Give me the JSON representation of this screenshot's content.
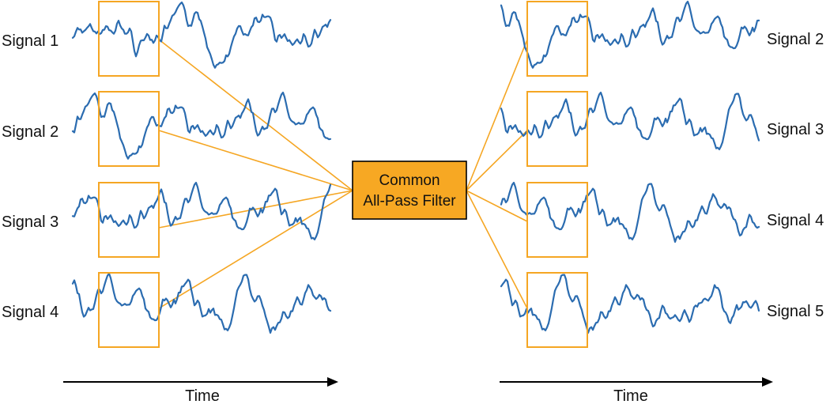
{
  "colors": {
    "signal": "#2b6cb0",
    "accent": "#f5a623",
    "filter_fill": "#f7a823",
    "axis": "#000000"
  },
  "left_panel": {
    "signals": [
      "Signal 1",
      "Signal 2",
      "Signal 3",
      "Signal 4"
    ],
    "time_label": "Time"
  },
  "right_panel": {
    "signals": [
      "Signal 2",
      "Signal 3",
      "Signal 4",
      "Signal 5"
    ],
    "time_label": "Time"
  },
  "filter": {
    "line1": "Common",
    "line2": "All-Pass Filter"
  }
}
